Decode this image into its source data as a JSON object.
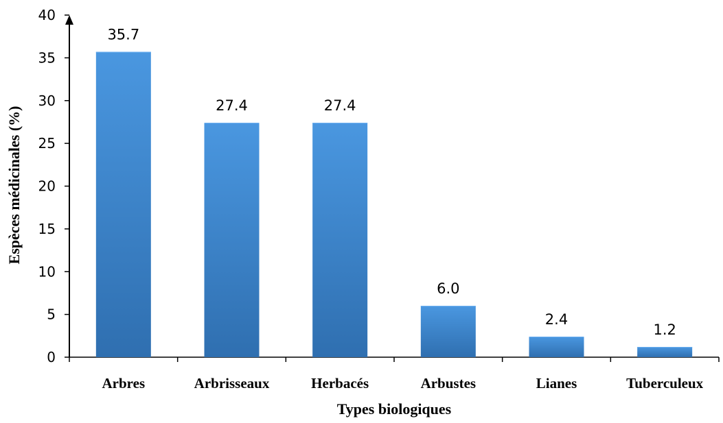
{
  "chart_data": {
    "type": "bar",
    "categories": [
      "Arbres",
      "Arbrisseaux",
      "Herbacés",
      "Arbustes",
      "Lianes",
      "Tuberculeux"
    ],
    "values": [
      35.7,
      27.4,
      27.4,
      6.0,
      2.4,
      1.2
    ],
    "data_labels": [
      "35.7",
      "27.4",
      "27.4",
      "6.0",
      "2.4",
      "1.2"
    ],
    "xlabel": "Types biologiques",
    "ylabel": "Espèces médicinales (%)",
    "ylim": [
      0,
      40
    ],
    "yticks": [
      0,
      5,
      10,
      15,
      20,
      25,
      30,
      35,
      40
    ],
    "grid": false,
    "bar_color": "#3f86cf"
  }
}
